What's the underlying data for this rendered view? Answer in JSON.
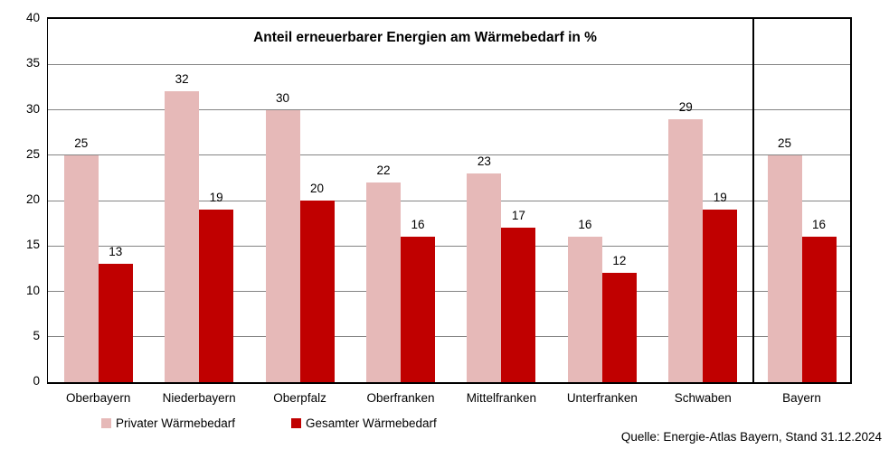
{
  "chart_data": {
    "type": "bar",
    "title": "Anteil erneuerbarer Energien am Wärmebedarf in %",
    "categories": [
      "Oberbayern",
      "Niederbayern",
      "Oberpfalz",
      "Oberfranken",
      "Mittelfranken",
      "Unterfranken",
      "Schwaben",
      "Bayern"
    ],
    "series": [
      {
        "name": "Privater Wärmebedarf",
        "color": "#E6B9B8",
        "values": [
          25,
          32,
          30,
          22,
          23,
          16,
          29,
          25
        ]
      },
      {
        "name": "Gesamter Wärmebedarf",
        "color": "#C00000",
        "values": [
          13,
          19,
          20,
          16,
          17,
          12,
          19,
          16
        ]
      }
    ],
    "ylim": [
      0,
      40
    ],
    "ytick_step": 5,
    "yticks": [
      0,
      5,
      10,
      15,
      20,
      25,
      30,
      35,
      40
    ],
    "grid": true,
    "value_labels": true,
    "legend_position": "bottom",
    "separator_before_category": "Bayern",
    "axis_color": "#000000",
    "gridline_color": "#848484"
  },
  "footer": {
    "source": "Quelle: Energie-Atlas Bayern, Stand 31.12.2024"
  }
}
